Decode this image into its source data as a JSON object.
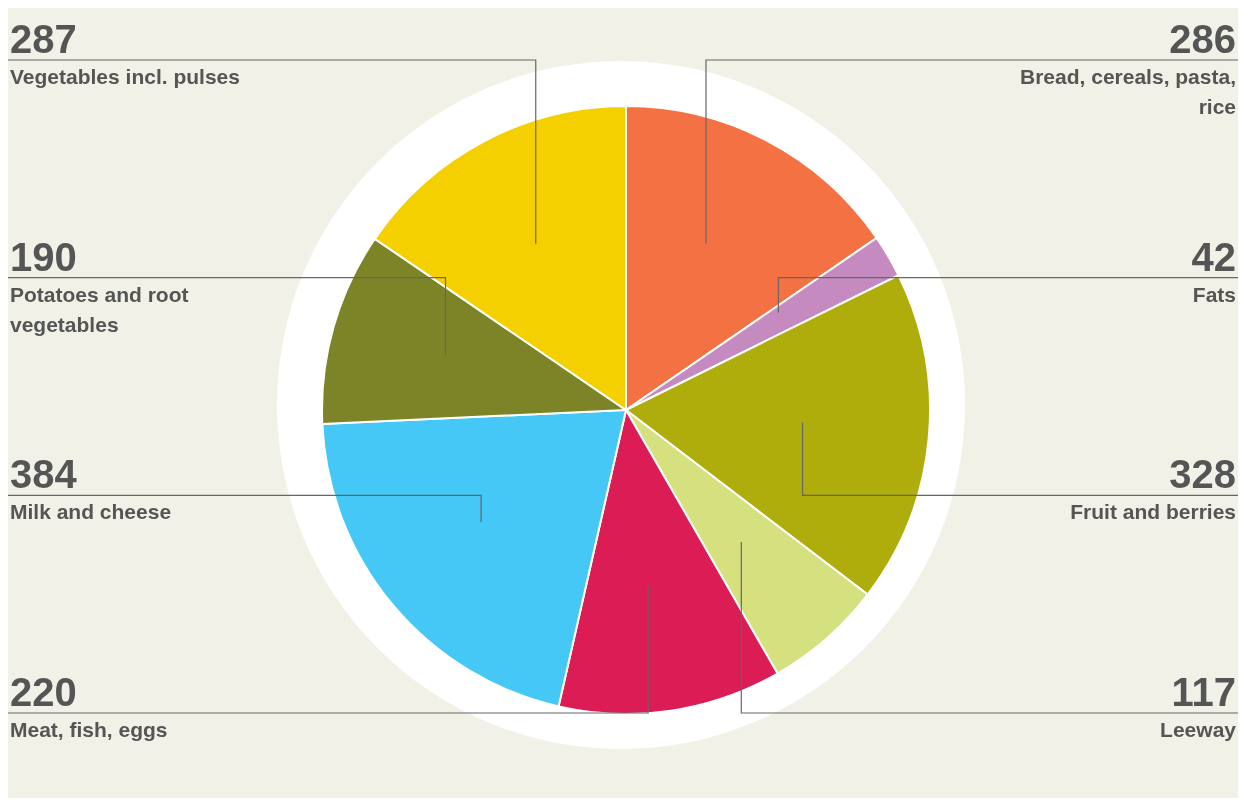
{
  "chart_data": {
    "type": "pie",
    "categories": [
      "Bread, cereals, pasta, rice",
      "Fats",
      "Fruit and berries",
      "Leeway",
      "Meat, fish, eggs",
      "Milk and cheese",
      "Potatoes and root vegetables",
      "Vegetables incl. pulses"
    ],
    "values": [
      286,
      42,
      328,
      117,
      220,
      384,
      190,
      287
    ],
    "colors": [
      "#f37142",
      "#c58bc0",
      "#aead0c",
      "#d5e07e",
      "#db1c55",
      "#45c8f5",
      "#7d8427",
      "#f5d000"
    ],
    "data_labels": true
  }
}
